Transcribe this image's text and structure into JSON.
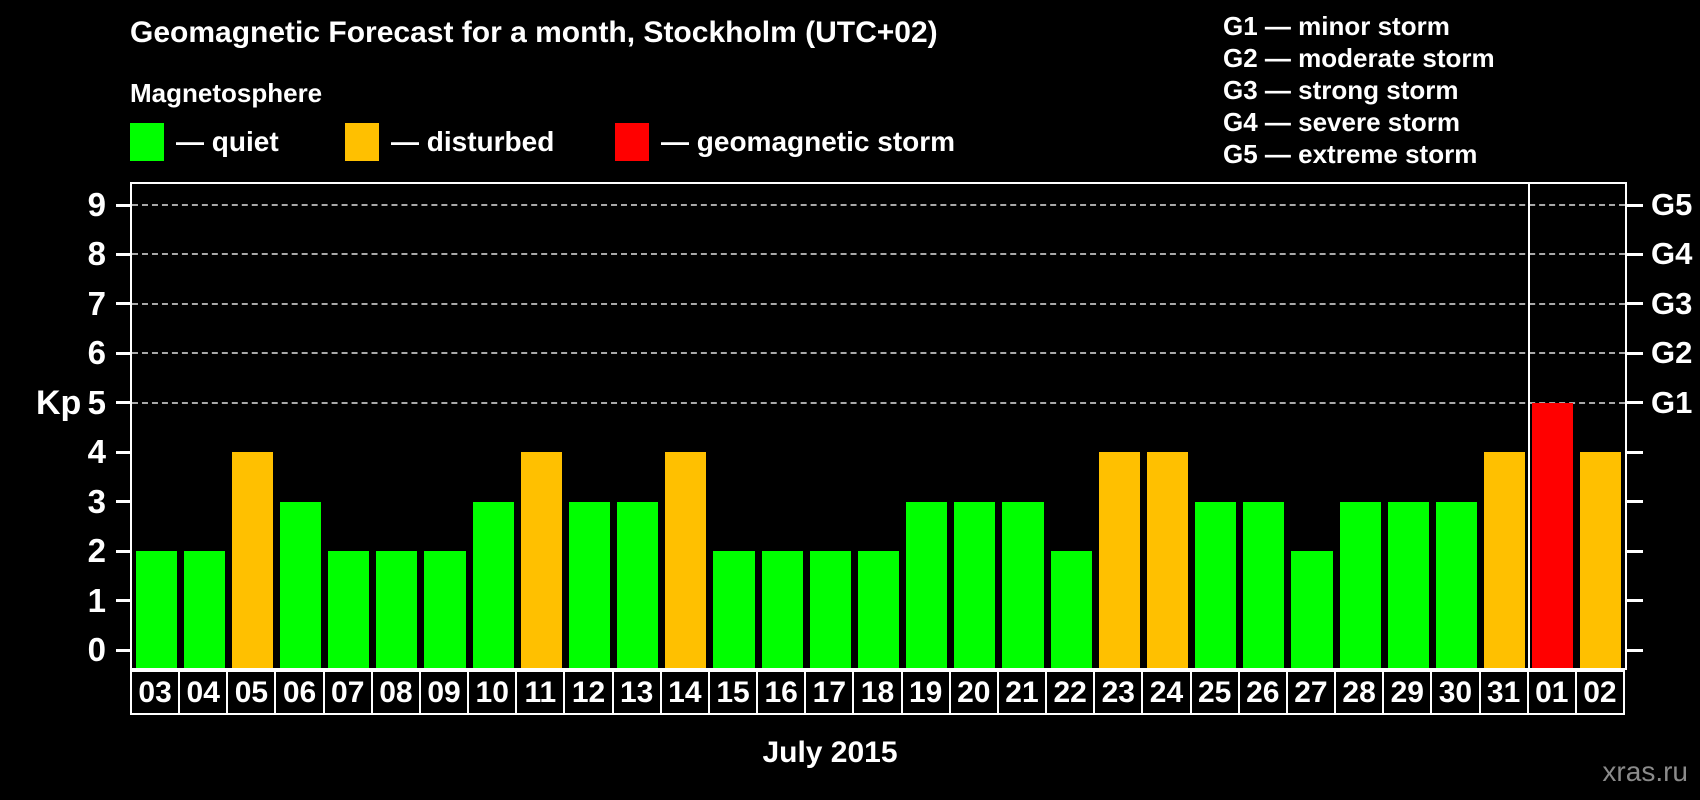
{
  "title": "Geomagnetic Forecast for a month, Stockholm (UTC+02)",
  "subtitle": "Magnetosphere",
  "legend": {
    "items": [
      {
        "key": "quiet",
        "label": "— quiet",
        "color": "#00ff00"
      },
      {
        "key": "disturbed",
        "label": "— disturbed",
        "color": "#ffc000"
      },
      {
        "key": "storm",
        "label": "— geomagnetic storm",
        "color": "#ff0000"
      }
    ]
  },
  "g_legend": {
    "items": [
      "G1 — minor storm",
      "G2 — moderate storm",
      "G3 — strong storm",
      "G4 — severe storm",
      "G5 — extreme storm"
    ]
  },
  "axes": {
    "y_label": "Kp",
    "x_label": "July 2015"
  },
  "watermark": "xras.ru",
  "chart_data": {
    "type": "bar",
    "title": "Geomagnetic Forecast for a month, Stockholm (UTC+02)",
    "xlabel": "July 2015",
    "ylabel": "Kp",
    "ylim": [
      0,
      9
    ],
    "y_ticks": [
      0,
      1,
      2,
      3,
      4,
      5,
      6,
      7,
      8,
      9
    ],
    "gridlines_at": [
      5,
      6,
      7,
      8,
      9
    ],
    "grid": "dashed, only at Kp 5-9",
    "legend_position": "top-left",
    "categories": [
      "03",
      "04",
      "05",
      "06",
      "07",
      "08",
      "09",
      "10",
      "11",
      "12",
      "13",
      "14",
      "15",
      "16",
      "17",
      "18",
      "19",
      "20",
      "21",
      "22",
      "23",
      "24",
      "25",
      "26",
      "27",
      "28",
      "29",
      "30",
      "31",
      "01",
      "02"
    ],
    "values": [
      2,
      2,
      4,
      3,
      2,
      2,
      2,
      3,
      4,
      3,
      3,
      4,
      2,
      2,
      2,
      2,
      3,
      3,
      3,
      2,
      4,
      4,
      3,
      3,
      2,
      3,
      3,
      3,
      4,
      5,
      4
    ],
    "statuses": [
      "quiet",
      "quiet",
      "disturbed",
      "quiet",
      "quiet",
      "quiet",
      "quiet",
      "quiet",
      "disturbed",
      "quiet",
      "quiet",
      "disturbed",
      "quiet",
      "quiet",
      "quiet",
      "quiet",
      "quiet",
      "quiet",
      "quiet",
      "quiet",
      "disturbed",
      "disturbed",
      "quiet",
      "quiet",
      "quiet",
      "quiet",
      "quiet",
      "quiet",
      "disturbed",
      "storm",
      "disturbed"
    ],
    "series_colors": {
      "quiet": "#00ff00",
      "disturbed": "#ffc000",
      "storm": "#ff0000"
    },
    "right_axis": [
      {
        "kp": 5,
        "label": "G1"
      },
      {
        "kp": 6,
        "label": "G2"
      },
      {
        "kp": 7,
        "label": "G3"
      },
      {
        "kp": 8,
        "label": "G4"
      },
      {
        "kp": 9,
        "label": "G5"
      }
    ],
    "month_boundary_after_index": 28
  }
}
